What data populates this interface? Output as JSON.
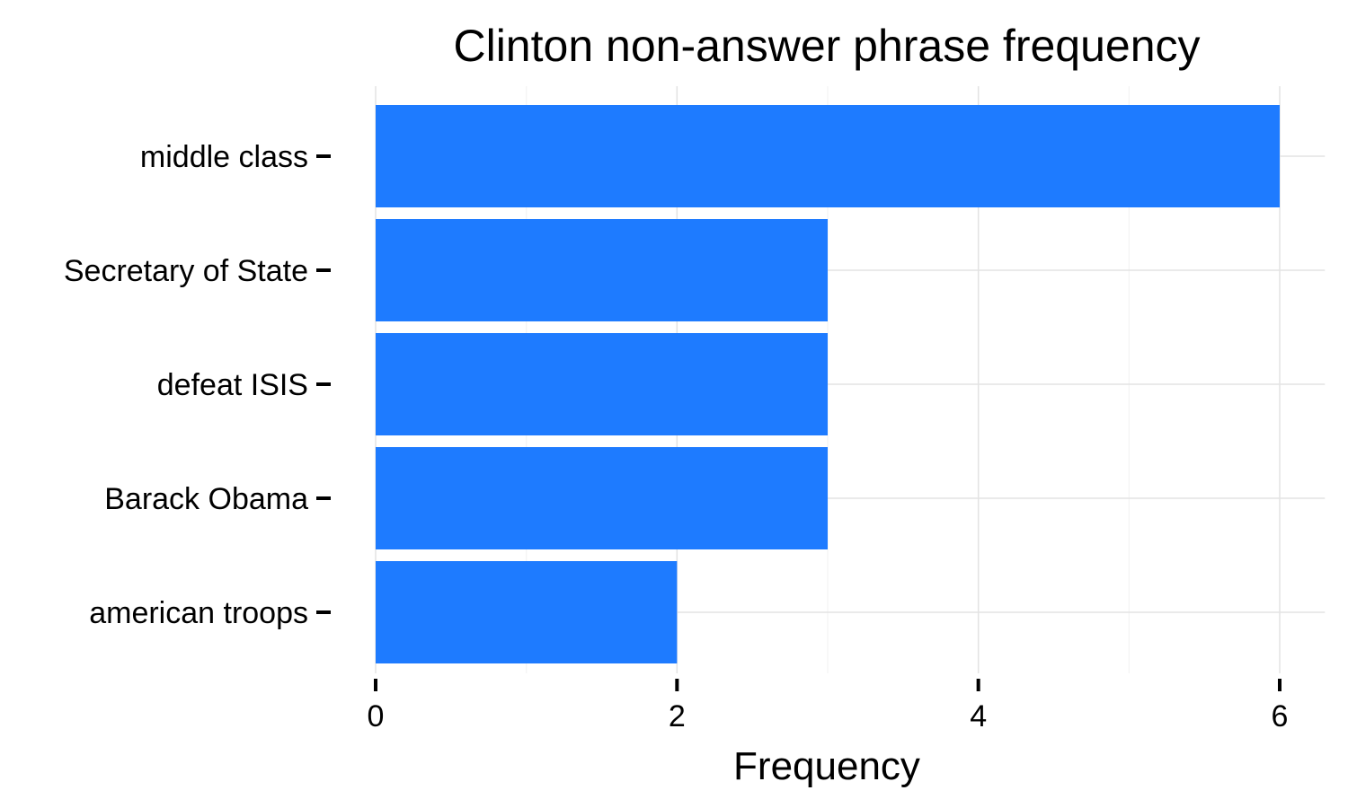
{
  "chart_data": {
    "type": "bar",
    "orientation": "horizontal",
    "title": "Clinton non-answer phrase frequency",
    "xlabel": "Frequency",
    "ylabel": "",
    "categories": [
      "middle class",
      "Secretary of State",
      "defeat ISIS",
      "Barack Obama",
      "american troops"
    ],
    "values": [
      6,
      3,
      3,
      3,
      2
    ],
    "xlim": [
      0,
      6.3
    ],
    "xticks": [
      0,
      2,
      4,
      6
    ],
    "grid": true,
    "legend": "none",
    "bar_color": "#1e7bff"
  }
}
